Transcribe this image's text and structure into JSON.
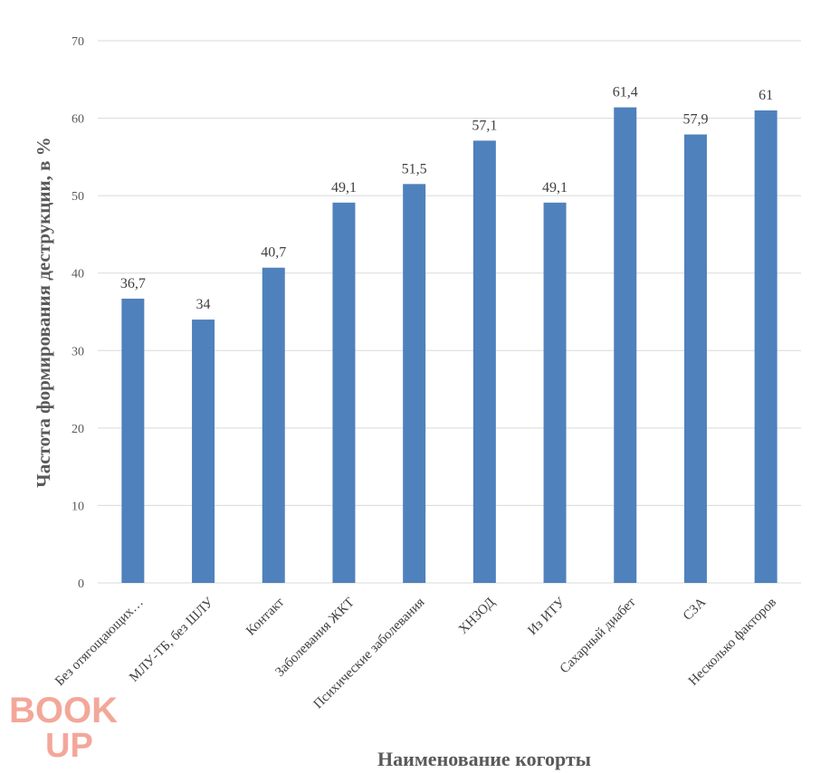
{
  "chart_data": {
    "type": "bar",
    "categories": [
      "Без отягощающих…",
      "МЛУ-ТБ, без ШЛУ",
      "Контакт",
      "Заболевания ЖКТ",
      "Психические заболевания",
      "ХНЗОД",
      "Из ИТУ",
      "Сахарный диабет",
      "СЗА",
      "Несколько факторов"
    ],
    "values": [
      36.7,
      34,
      40.7,
      49.1,
      51.5,
      57.1,
      49.1,
      61.4,
      57.9,
      61
    ],
    "value_labels": [
      "36,7",
      "34",
      "40,7",
      "49,1",
      "51,5",
      "57,1",
      "49,1",
      "61,4",
      "57,9",
      "61"
    ],
    "ylabel": "Частота формирования деструкции, в %",
    "xlabel": "Наименование когорты",
    "ylim": [
      0,
      70
    ],
    "yticks": [
      0,
      10,
      20,
      30,
      40,
      50,
      60,
      70
    ],
    "grid": true,
    "bar_color": "#4f81bd",
    "grid_color": "#d9d9d9"
  },
  "watermark": {
    "line1": "BOOK",
    "line2": "UP"
  }
}
